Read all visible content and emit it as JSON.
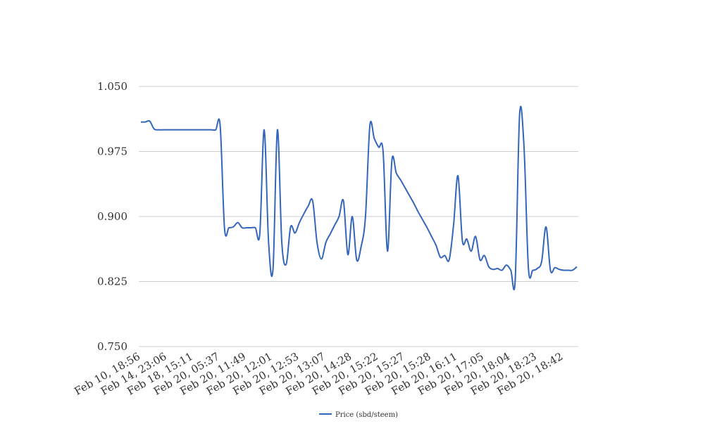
{
  "chart_data": {
    "type": "line",
    "categories": [
      "Feb 10, 18:56",
      null,
      null,
      null,
      null,
      null,
      "Feb 14, 23:06",
      null,
      null,
      null,
      null,
      null,
      "Feb 18, 15:11",
      null,
      null,
      null,
      null,
      null,
      "Feb 20, 05:37",
      null,
      null,
      null,
      null,
      null,
      "Feb 20, 11:49",
      null,
      null,
      null,
      null,
      null,
      "Feb 20, 12:01",
      null,
      null,
      null,
      null,
      null,
      "Feb 20, 12:53",
      null,
      null,
      null,
      null,
      null,
      "Feb 20, 13:07",
      null,
      null,
      null,
      null,
      null,
      "Feb 20, 14:28",
      null,
      null,
      null,
      null,
      null,
      "Feb 20, 15:22",
      null,
      null,
      null,
      null,
      null,
      "Feb 20, 15:27",
      null,
      null,
      null,
      null,
      null,
      "Feb 20, 15:28",
      null,
      null,
      null,
      null,
      null,
      "Feb 20, 16:11",
      null,
      null,
      null,
      null,
      null,
      "Feb 20, 17:05",
      null,
      null,
      null,
      null,
      null,
      "Feb 20, 18:04",
      null,
      null,
      null,
      null,
      null,
      "Feb 20, 18:23",
      null,
      null,
      null,
      null,
      null,
      "Feb 20, 18:42",
      null,
      null,
      null
    ],
    "series": [
      {
        "name": "Price (sbd/steem)",
        "color": "#3366bb",
        "values": [
          1.009,
          1.009,
          1.01,
          1.001,
          1.0,
          1.0,
          1.0,
          1.0,
          1.0,
          1.0,
          1.0,
          1.0,
          1.0,
          1.0,
          1.0,
          1.0,
          1.0,
          1.0,
          1.005,
          0.886,
          0.887,
          0.888,
          0.893,
          0.887,
          0.887,
          0.887,
          0.887,
          0.88,
          1.0,
          0.87,
          0.839,
          1.0,
          0.87,
          0.845,
          0.888,
          0.881,
          0.893,
          0.903,
          0.912,
          0.918,
          0.87,
          0.851,
          0.87,
          0.88,
          0.89,
          0.9,
          0.918,
          0.856,
          0.9,
          0.85,
          0.865,
          0.9,
          1.005,
          0.99,
          0.98,
          0.975,
          0.86,
          0.965,
          0.95,
          0.942,
          0.933,
          0.924,
          0.915,
          0.905,
          0.896,
          0.887,
          0.877,
          0.867,
          0.853,
          0.855,
          0.85,
          0.89,
          0.947,
          0.872,
          0.874,
          0.86,
          0.877,
          0.85,
          0.855,
          0.842,
          0.839,
          0.84,
          0.838,
          0.844,
          0.838,
          0.827,
          1.018,
          0.98,
          0.84,
          0.838,
          0.84,
          0.848,
          0.888,
          0.838,
          0.841,
          0.839,
          0.838,
          0.838,
          0.838,
          0.842
        ]
      }
    ],
    "ylim": [
      0.75,
      1.05
    ],
    "yticks": [
      {
        "value": 0.75,
        "label": "0.750"
      },
      {
        "value": 0.825,
        "label": "0.825"
      },
      {
        "value": 0.9,
        "label": "0.900"
      },
      {
        "value": 0.975,
        "label": "0.975"
      },
      {
        "value": 1.05,
        "label": "1.050"
      }
    ],
    "grid": true,
    "legend": "bottom"
  }
}
